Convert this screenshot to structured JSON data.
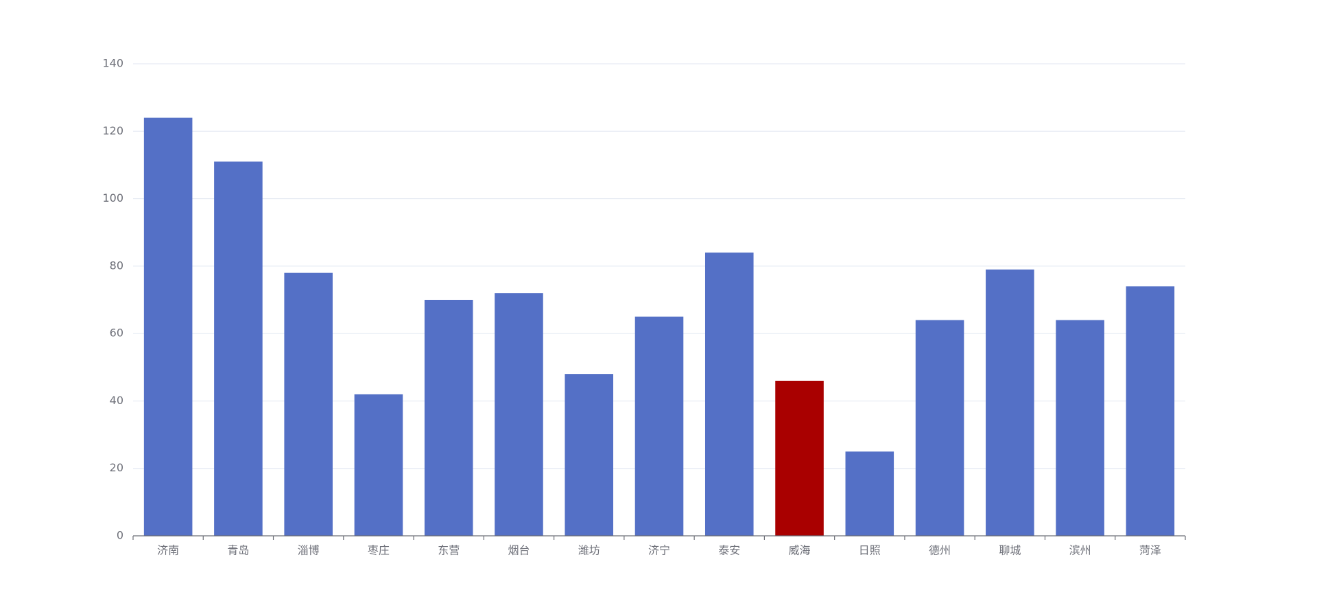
{
  "chart_data": {
    "type": "bar",
    "categories": [
      "济南",
      "青岛",
      "淄博",
      "枣庄",
      "东营",
      "烟台",
      "潍坊",
      "济宁",
      "泰安",
      "威海",
      "日照",
      "德州",
      "聊城",
      "滨州",
      "菏泽"
    ],
    "values": [
      124,
      111,
      78,
      42,
      70,
      72,
      48,
      65,
      84,
      46,
      25,
      64,
      79,
      64,
      74
    ],
    "colors": [
      "#5470c6",
      "#5470c6",
      "#5470c6",
      "#5470c6",
      "#5470c6",
      "#5470c6",
      "#5470c6",
      "#5470c6",
      "#5470c6",
      "#a90000",
      "#5470c6",
      "#5470c6",
      "#5470c6",
      "#5470c6",
      "#5470c6"
    ],
    "ylim": [
      0,
      140
    ],
    "yticks": [
      0,
      20,
      40,
      60,
      80,
      100,
      120,
      140
    ],
    "grid": true
  }
}
